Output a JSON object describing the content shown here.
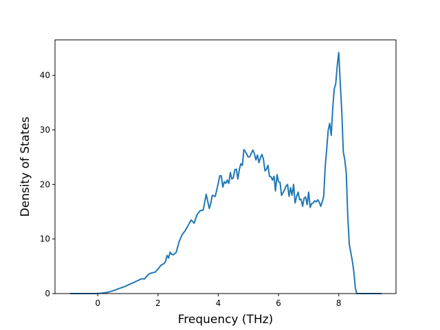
{
  "chart_data": {
    "type": "line",
    "xlabel": "Frequency (THz)",
    "ylabel": "Density of States",
    "xlim": [
      -1.42,
      9.9
    ],
    "ylim": [
      0,
      46.5
    ],
    "xticks": [
      0,
      2,
      4,
      6,
      8
    ],
    "yticks": [
      0,
      10,
      20,
      30,
      40
    ],
    "grid": false,
    "legend": "none",
    "series": [
      {
        "color": "#1f77b4",
        "x": [
          -0.9,
          -0.7,
          -0.5,
          -0.3,
          -0.1,
          0.1,
          0.3,
          0.5,
          0.7,
          0.9,
          1.1,
          1.3,
          1.45,
          1.55,
          1.7,
          1.8,
          1.9,
          2.0,
          2.1,
          2.2,
          2.25,
          2.3,
          2.35,
          2.4,
          2.45,
          2.5,
          2.55,
          2.6,
          2.7,
          2.8,
          2.9,
          3.0,
          3.1,
          3.2,
          3.3,
          3.4,
          3.5,
          3.6,
          3.7,
          3.75,
          3.8,
          3.9,
          4.0,
          4.05,
          4.1,
          4.15,
          4.2,
          4.25,
          4.3,
          4.35,
          4.4,
          4.45,
          4.5,
          4.55,
          4.6,
          4.65,
          4.7,
          4.75,
          4.8,
          4.85,
          4.9,
          5.0,
          5.05,
          5.1,
          5.15,
          5.2,
          5.25,
          5.3,
          5.35,
          5.4,
          5.45,
          5.5,
          5.55,
          5.6,
          5.65,
          5.7,
          5.75,
          5.8,
          5.85,
          5.9,
          5.95,
          6.0,
          6.05,
          6.1,
          6.15,
          6.2,
          6.25,
          6.3,
          6.35,
          6.4,
          6.45,
          6.5,
          6.55,
          6.6,
          6.65,
          6.7,
          6.75,
          6.8,
          6.85,
          6.9,
          6.95,
          7.0,
          7.05,
          7.1,
          7.15,
          7.2,
          7.25,
          7.3,
          7.35,
          7.4,
          7.45,
          7.5,
          7.55,
          7.6,
          7.65,
          7.7,
          7.75,
          7.8,
          7.85,
          7.9,
          7.95,
          8.0,
          8.05,
          8.1,
          8.15,
          8.2,
          8.25,
          8.3,
          8.35,
          8.4,
          8.45,
          8.5,
          8.55,
          8.6,
          9.0,
          9.4
        ],
        "y": [
          0,
          0,
          0,
          0,
          0,
          0.05,
          0.2,
          0.5,
          0.9,
          1.3,
          1.8,
          2.3,
          2.7,
          2.7,
          3.6,
          3.8,
          3.9,
          4.5,
          5.2,
          5.5,
          5.9,
          7.0,
          6.5,
          7.6,
          7.2,
          7.1,
          7.3,
          7.5,
          9.5,
          10.8,
          11.5,
          12.5,
          13.5,
          12.9,
          14.5,
          15.2,
          15.3,
          18.2,
          15.6,
          16.5,
          18.0,
          17.8,
          20.2,
          21.6,
          21.6,
          19.5,
          20.5,
          20.2,
          20.8,
          20.2,
          22.2,
          21.0,
          21.2,
          22.7,
          22.8,
          21.0,
          22.8,
          23.8,
          23.5,
          26.4,
          26.0,
          25.0,
          25.1,
          25.8,
          26.3,
          25.6,
          24.5,
          25.4,
          24.0,
          24.9,
          25.5,
          24.6,
          22.5,
          22.8,
          23.5,
          21.5,
          21.4,
          20.8,
          21.5,
          18.8,
          21.8,
          20.5,
          20.4,
          18.0,
          18.5,
          19.0,
          19.7,
          20.0,
          17.8,
          19.4,
          18.0,
          20.0,
          16.6,
          17.8,
          18.6,
          17.2,
          17.3,
          16.0,
          17.5,
          17.7,
          16.3,
          18.6,
          15.8,
          16.5,
          16.6,
          17.0,
          16.8,
          17.2,
          16.8,
          16.0,
          16.8,
          17.8,
          23.2,
          26.5,
          30.0,
          31.2,
          29.0,
          34.0,
          37.5,
          38.5,
          41.8,
          44.2,
          38.5,
          33.5,
          26.0,
          24.5,
          22.0,
          14.0,
          9.0,
          7.5,
          6.0,
          4.0,
          1.0,
          0,
          0,
          0
        ]
      }
    ]
  }
}
